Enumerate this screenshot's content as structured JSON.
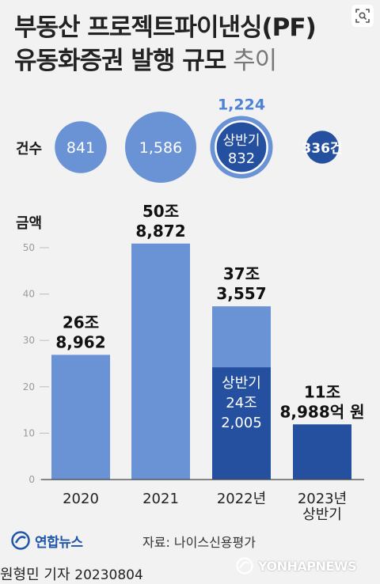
{
  "header": {
    "title_line1": "부동산 프로젝트파이낸싱(PF)",
    "title_line2_main": "유동화증권 발행 규모",
    "title_line2_tail": " 추이"
  },
  "labels": {
    "count_label": "건수",
    "amount_label": "금액"
  },
  "chart_data": {
    "type": "bar",
    "title": "부동산 프로젝트파이낸싱(PF) 유동화증권 발행 규모 추이",
    "xlabel": "",
    "ylabel": "금액",
    "ylim": [
      0,
      50
    ],
    "yticks": [
      0,
      10,
      20,
      30,
      40,
      50
    ],
    "categories": [
      "2020",
      "2021",
      "2022년",
      "2023년 상반기"
    ],
    "values": [
      26.8962,
      50.8872,
      37.3557,
      11.8988
    ],
    "sub_values": [
      null,
      null,
      24.2005,
      null
    ],
    "value_labels": [
      [
        "26조",
        "8,962"
      ],
      [
        "50조",
        "8,872"
      ],
      [
        "37조",
        "3,557"
      ],
      [
        "11조",
        "8,988억 원"
      ]
    ],
    "sub_value_labels": [
      null,
      null,
      [
        "상반기",
        "24조",
        "2,005"
      ],
      null
    ],
    "counts": [
      841,
      1586,
      1224,
      336
    ],
    "count_labels": [
      "841",
      "1,586",
      "1,224",
      "336건"
    ],
    "sub_counts": [
      null,
      null,
      832,
      null
    ],
    "sub_count_labels": [
      null,
      null,
      [
        "상반기",
        "832"
      ],
      null
    ],
    "colors": {
      "bar": "#6a93d6",
      "bar_dark": "#24509f",
      "count_text": "#4d82d4"
    }
  },
  "footer": {
    "logo_text": "연합뉴스",
    "source": "자료: 나이스신용평가",
    "byline_name": "원형민 기자",
    "byline_date": "20230804",
    "watermark": "YONHAPNEWS"
  }
}
